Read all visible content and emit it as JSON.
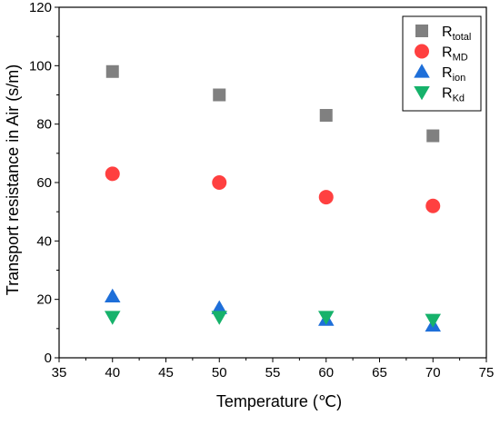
{
  "chart_data": {
    "type": "scatter",
    "xlabel": "Temperature (℃)",
    "ylabel": "Transport resistance in Air (s/m)",
    "xlim": [
      35,
      75
    ],
    "ylim": [
      0,
      120
    ],
    "xticks": [
      "35",
      "40",
      "45",
      "50",
      "55",
      "60",
      "65",
      "70",
      "75"
    ],
    "yticks": [
      "0",
      "20",
      "40",
      "60",
      "80",
      "100",
      "120"
    ],
    "legend_position": "top-right",
    "grid": false,
    "x": [
      40,
      50,
      60,
      70
    ],
    "series": [
      {
        "name_main": "R",
        "name_sub": "total",
        "marker": "square",
        "color": "#808080",
        "values": [
          98,
          90,
          83,
          76
        ]
      },
      {
        "name_main": "R",
        "name_sub": "MD",
        "marker": "circle",
        "color": "#ff4040",
        "values": [
          63,
          60,
          55,
          52
        ]
      },
      {
        "name_main": "R",
        "name_sub": "ion",
        "marker": "triangle-up",
        "color": "#1e6fd9",
        "values": [
          21,
          17,
          13,
          11
        ]
      },
      {
        "name_main": "R",
        "name_sub": "Kd",
        "marker": "triangle-down",
        "color": "#16b26b",
        "values": [
          14,
          14,
          14,
          13
        ]
      }
    ]
  }
}
